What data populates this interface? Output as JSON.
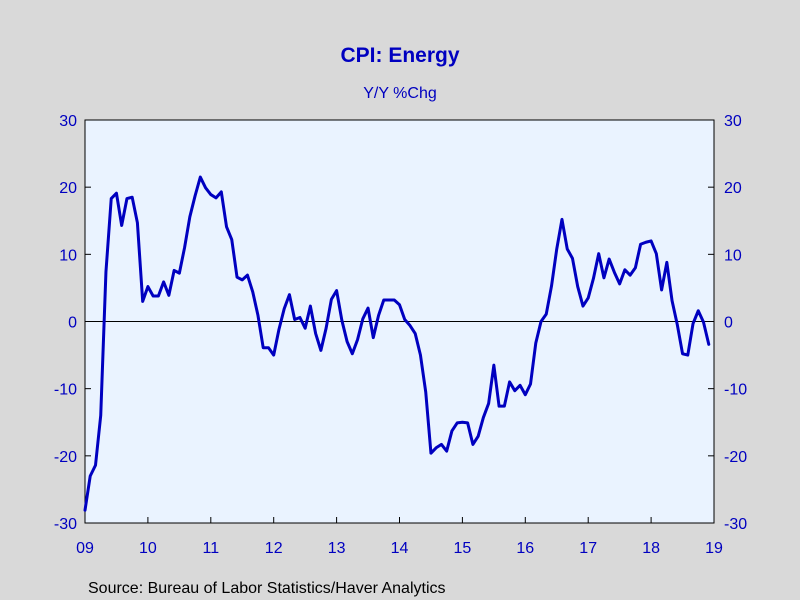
{
  "chart_data": {
    "type": "line",
    "title": "CPI: Energy",
    "subtitle": "Y/Y %Chg",
    "source": "Source:  Bureau of Labor Statistics/Haver Analytics",
    "xlabel": "",
    "ylabel": "",
    "ylim": [
      -30,
      30
    ],
    "yticks": [
      30,
      20,
      10,
      0,
      -10,
      -20,
      -30
    ],
    "xlim": [
      2009.0,
      2019.0
    ],
    "xticks": [
      {
        "value": 2009,
        "label": "09"
      },
      {
        "value": 2010,
        "label": "10"
      },
      {
        "value": 2011,
        "label": "11"
      },
      {
        "value": 2012,
        "label": "12"
      },
      {
        "value": 2013,
        "label": "13"
      },
      {
        "value": 2014,
        "label": "14"
      },
      {
        "value": 2015,
        "label": "15"
      },
      {
        "value": 2016,
        "label": "16"
      },
      {
        "value": 2017,
        "label": "17"
      },
      {
        "value": 2018,
        "label": "18"
      },
      {
        "value": 2019,
        "label": "19"
      }
    ],
    "grid": false,
    "zero_line": true,
    "dual_y_axis": true,
    "colors": {
      "line": "#0000c0",
      "text": "#0000c0",
      "plot_bg": "#eaf3ff",
      "page_bg": "#d9d9d9"
    },
    "series": [
      {
        "values": [
          [
            2009.0,
            -28.1
          ],
          [
            2009.083,
            -23.0
          ],
          [
            2009.167,
            -21.4
          ],
          [
            2009.25,
            -14.0
          ],
          [
            2009.333,
            7.4
          ],
          [
            2009.417,
            18.3
          ],
          [
            2009.5,
            19.1
          ],
          [
            2009.583,
            14.3
          ],
          [
            2009.667,
            18.3
          ],
          [
            2009.75,
            18.5
          ],
          [
            2009.833,
            14.7
          ],
          [
            2009.917,
            3.0
          ],
          [
            2010.0,
            5.2
          ],
          [
            2010.083,
            3.8
          ],
          [
            2010.167,
            3.8
          ],
          [
            2010.25,
            5.9
          ],
          [
            2010.333,
            3.9
          ],
          [
            2010.417,
            7.6
          ],
          [
            2010.5,
            7.2
          ],
          [
            2010.583,
            11.0
          ],
          [
            2010.667,
            15.6
          ],
          [
            2010.75,
            18.7
          ],
          [
            2010.833,
            21.5
          ],
          [
            2010.917,
            19.9
          ],
          [
            2011.0,
            18.9
          ],
          [
            2011.083,
            18.4
          ],
          [
            2011.167,
            19.3
          ],
          [
            2011.25,
            14.1
          ],
          [
            2011.333,
            12.2
          ],
          [
            2011.417,
            6.6
          ],
          [
            2011.5,
            6.2
          ],
          [
            2011.583,
            6.9
          ],
          [
            2011.667,
            4.4
          ],
          [
            2011.75,
            0.9
          ],
          [
            2011.833,
            -3.9
          ],
          [
            2011.917,
            -3.9
          ],
          [
            2012.0,
            -5.0
          ],
          [
            2012.083,
            -1.2
          ],
          [
            2012.167,
            1.9
          ],
          [
            2012.25,
            4.0
          ],
          [
            2012.333,
            0.3
          ],
          [
            2012.417,
            0.6
          ],
          [
            2012.5,
            -1.0
          ],
          [
            2012.583,
            2.3
          ],
          [
            2012.667,
            -1.8
          ],
          [
            2012.75,
            -4.3
          ],
          [
            2012.833,
            -1.0
          ],
          [
            2012.917,
            3.3
          ],
          [
            2013.0,
            4.6
          ],
          [
            2013.083,
            0.2
          ],
          [
            2013.167,
            -3.0
          ],
          [
            2013.25,
            -4.8
          ],
          [
            2013.333,
            -2.7
          ],
          [
            2013.417,
            0.4
          ],
          [
            2013.5,
            2.0
          ],
          [
            2013.583,
            -2.4
          ],
          [
            2013.667,
            0.9
          ],
          [
            2013.75,
            3.2
          ],
          [
            2013.833,
            3.2
          ],
          [
            2013.917,
            3.2
          ],
          [
            2014.0,
            2.5
          ],
          [
            2014.083,
            0.3
          ],
          [
            2014.167,
            -0.6
          ],
          [
            2014.25,
            -1.8
          ],
          [
            2014.333,
            -5.0
          ],
          [
            2014.417,
            -10.5
          ],
          [
            2014.5,
            -19.6
          ],
          [
            2014.583,
            -18.8
          ],
          [
            2014.667,
            -18.3
          ],
          [
            2014.75,
            -19.3
          ],
          [
            2014.833,
            -16.3
          ],
          [
            2014.917,
            -15.1
          ],
          [
            2015.0,
            -15.0
          ],
          [
            2015.083,
            -15.1
          ],
          [
            2015.167,
            -18.3
          ],
          [
            2015.25,
            -17.1
          ],
          [
            2015.333,
            -14.3
          ],
          [
            2015.417,
            -12.2
          ],
          [
            2015.5,
            -6.5
          ],
          [
            2015.583,
            -12.6
          ],
          [
            2015.667,
            -12.6
          ],
          [
            2015.75,
            -9.0
          ],
          [
            2015.833,
            -10.3
          ],
          [
            2015.917,
            -9.5
          ],
          [
            2016.0,
            -10.9
          ],
          [
            2016.083,
            -9.3
          ],
          [
            2016.167,
            -3.2
          ],
          [
            2016.25,
            0.0
          ],
          [
            2016.333,
            1.1
          ],
          [
            2016.417,
            5.3
          ],
          [
            2016.5,
            10.8
          ],
          [
            2016.583,
            15.2
          ],
          [
            2016.667,
            10.8
          ],
          [
            2016.75,
            9.4
          ],
          [
            2016.833,
            5.2
          ],
          [
            2016.917,
            2.3
          ],
          [
            2017.0,
            3.5
          ],
          [
            2017.083,
            6.4
          ],
          [
            2017.167,
            10.1
          ],
          [
            2017.25,
            6.5
          ],
          [
            2017.333,
            9.3
          ],
          [
            2017.417,
            7.3
          ],
          [
            2017.5,
            5.6
          ],
          [
            2017.583,
            7.7
          ],
          [
            2017.667,
            6.9
          ],
          [
            2017.75,
            8.0
          ],
          [
            2017.833,
            11.5
          ],
          [
            2017.917,
            11.8
          ],
          [
            2018.0,
            12.0
          ],
          [
            2018.083,
            10.1
          ],
          [
            2018.167,
            4.7
          ],
          [
            2018.25,
            8.8
          ],
          [
            2018.333,
            3.1
          ],
          [
            2018.417,
            -0.5
          ],
          [
            2018.5,
            -4.8
          ],
          [
            2018.583,
            -5.0
          ],
          [
            2018.667,
            -0.3
          ],
          [
            2018.75,
            1.6
          ],
          [
            2018.833,
            -0.1
          ],
          [
            2018.917,
            -3.4
          ]
        ]
      }
    ]
  }
}
